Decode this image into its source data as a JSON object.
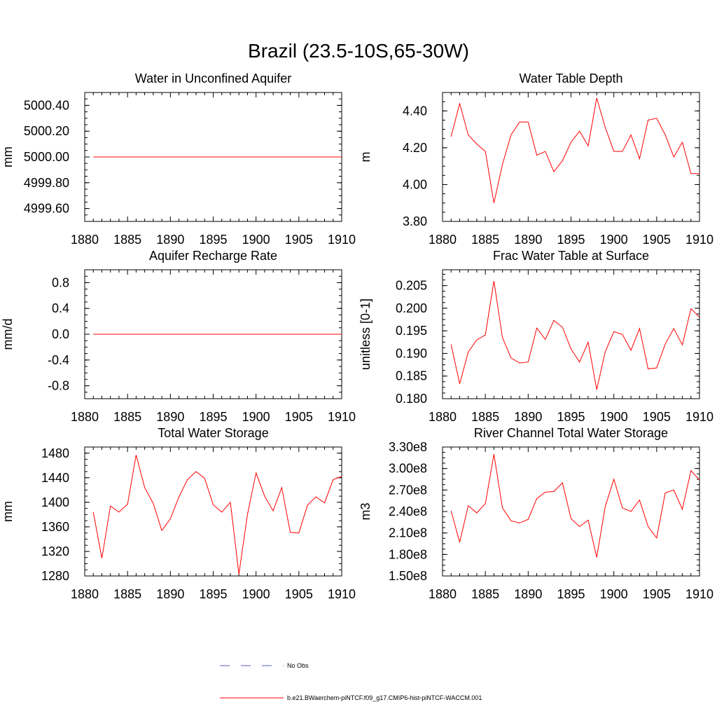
{
  "title": "Brazil (23.5-10S,65-30W)",
  "colors": {
    "model": "#ff0000",
    "obs": "#5b5bc8",
    "axis": "#000000"
  },
  "legend": {
    "obs_label": "No Obs",
    "model_label": "b.e21.BWaerchem-piNTCF.f09_g17.CMIP6-hist-piNTCF-WACCM.001"
  },
  "chart_data": [
    {
      "type": "line",
      "title": "Water in Unconfined Aquifer",
      "ylabel": "mm",
      "xlim": [
        1880,
        1910
      ],
      "ylim": [
        4999.5,
        5000.5
      ],
      "x_ticks": [
        1880,
        1885,
        1890,
        1895,
        1900,
        1905,
        1910
      ],
      "y_ticks": [
        "4999.60",
        "5000.40",
        "5000.20",
        "5000.00",
        "4999.80"
      ],
      "y_tick_values": [
        4999.6,
        5000.4,
        5000.2,
        5000.0,
        4999.8
      ],
      "series": [
        {
          "x": [
            1881,
            1910
          ],
          "y": [
            5000.0,
            5000.0
          ]
        }
      ]
    },
    {
      "type": "line",
      "title": "Water Table Depth",
      "ylabel": "m",
      "xlim": [
        1880,
        1910
      ],
      "ylim": [
        3.8,
        4.5
      ],
      "x_ticks": [
        1880,
        1885,
        1890,
        1895,
        1900,
        1905,
        1910
      ],
      "y_ticks": [
        "3.80",
        "4.00",
        "4.20",
        "4.40"
      ],
      "y_tick_values": [
        3.8,
        4.0,
        4.2,
        4.4
      ],
      "series": [
        {
          "x": [
            1881,
            1882,
            1883,
            1884,
            1885,
            1886,
            1887,
            1888,
            1889,
            1890,
            1891,
            1892,
            1893,
            1894,
            1895,
            1896,
            1897,
            1898,
            1899,
            1900,
            1901,
            1902,
            1903,
            1904,
            1905,
            1906,
            1907,
            1908,
            1909,
            1910
          ],
          "y": [
            4.26,
            4.44,
            4.27,
            4.22,
            4.18,
            3.9,
            4.11,
            4.27,
            4.34,
            4.34,
            4.16,
            4.18,
            4.07,
            4.13,
            4.23,
            4.29,
            4.21,
            4.47,
            4.31,
            4.18,
            4.18,
            4.27,
            4.14,
            4.35,
            4.36,
            4.27,
            4.15,
            4.23,
            4.06,
            4.06
          ]
        }
      ]
    },
    {
      "type": "line",
      "title": "Aquifer Recharge Rate",
      "ylabel": "mm/d",
      "xlim": [
        1880,
        1910
      ],
      "ylim": [
        -1.0,
        1.0
      ],
      "x_ticks": [
        1880,
        1885,
        1890,
        1895,
        1900,
        1905,
        1910
      ],
      "y_ticks": [
        "-0.8",
        "-0.4",
        "0.0",
        "0.4",
        "0.8"
      ],
      "y_tick_values": [
        -0.8,
        -0.4,
        0.0,
        0.4,
        0.8
      ],
      "series": [
        {
          "x": [
            1881,
            1910
          ],
          "y": [
            0.0,
            0.0
          ]
        }
      ]
    },
    {
      "type": "line",
      "title": "Frac Water Table at Surface",
      "ylabel": "unitless [0-1]",
      "xlim": [
        1880,
        1910
      ],
      "ylim": [
        0.18,
        0.2085
      ],
      "x_ticks": [
        1880,
        1885,
        1890,
        1895,
        1900,
        1905,
        1910
      ],
      "y_ticks": [
        "0.180",
        "0.185",
        "0.190",
        "0.195",
        "0.200",
        "0.205"
      ],
      "y_tick_values": [
        0.18,
        0.185,
        0.19,
        0.195,
        0.2,
        0.205
      ],
      "series": [
        {
          "x": [
            1881,
            1882,
            1883,
            1884,
            1885,
            1886,
            1887,
            1888,
            1889,
            1890,
            1891,
            1892,
            1893,
            1894,
            1895,
            1896,
            1897,
            1898,
            1899,
            1900,
            1901,
            1902,
            1903,
            1904,
            1905,
            1906,
            1907,
            1908,
            1909,
            1910
          ],
          "y": [
            0.192,
            0.1833,
            0.1903,
            0.193,
            0.1941,
            0.206,
            0.1935,
            0.189,
            0.1879,
            0.1881,
            0.1956,
            0.1931,
            0.1973,
            0.1958,
            0.191,
            0.1881,
            0.1925,
            0.182,
            0.1904,
            0.1948,
            0.1942,
            0.1907,
            0.1955,
            0.1866,
            0.1868,
            0.1921,
            0.1955,
            0.1919,
            0.1999,
            0.198
          ]
        }
      ]
    },
    {
      "type": "line",
      "title": "Total Water Storage",
      "ylabel": "mm",
      "xlim": [
        1880,
        1910
      ],
      "ylim": [
        1280,
        1490
      ],
      "x_ticks": [
        1880,
        1885,
        1890,
        1895,
        1900,
        1905,
        1910
      ],
      "y_ticks": [
        "1280",
        "1320",
        "1360",
        "1400",
        "1440",
        "1480"
      ],
      "y_tick_values": [
        1280,
        1320,
        1360,
        1400,
        1440,
        1480
      ],
      "series": [
        {
          "x": [
            1881,
            1882,
            1883,
            1884,
            1885,
            1886,
            1887,
            1888,
            1889,
            1890,
            1891,
            1892,
            1893,
            1894,
            1895,
            1896,
            1897,
            1898,
            1899,
            1900,
            1901,
            1902,
            1903,
            1904,
            1905,
            1906,
            1907,
            1908,
            1909,
            1910
          ],
          "y": [
            1384,
            1309,
            1394,
            1384,
            1397,
            1477,
            1424,
            1398,
            1354,
            1373,
            1409,
            1437,
            1450,
            1439,
            1396,
            1384,
            1400,
            1283,
            1380,
            1448,
            1410,
            1386,
            1424,
            1351,
            1350,
            1395,
            1409,
            1399,
            1437,
            1442
          ]
        }
      ]
    },
    {
      "type": "line",
      "title": "River Channel Total Water Storage",
      "ylabel": "m3",
      "xlim": [
        1880,
        1910
      ],
      "ylim": [
        150000000.0,
        330000000.0
      ],
      "x_ticks": [
        1880,
        1885,
        1890,
        1895,
        1900,
        1905,
        1910
      ],
      "y_ticks": [
        "1.50e8",
        "1.80e8",
        "2.10e8",
        "2.40e8",
        "2.70e8",
        "3.00e8",
        "3.30e8"
      ],
      "y_tick_values": [
        150000000.0,
        180000000.0,
        210000000.0,
        240000000.0,
        270000000.0,
        300000000.0,
        330000000.0
      ],
      "series": [
        {
          "x": [
            1881,
            1882,
            1883,
            1884,
            1885,
            1886,
            1887,
            1888,
            1889,
            1890,
            1891,
            1892,
            1893,
            1894,
            1895,
            1896,
            1897,
            1898,
            1899,
            1900,
            1901,
            1902,
            1903,
            1904,
            1905,
            1906,
            1907,
            1908,
            1909,
            1910
          ],
          "y": [
            241000000.0,
            197000000.0,
            248000000.0,
            238000000.0,
            251000000.0,
            320000000.0,
            245000000.0,
            227000000.0,
            224000000.0,
            229000000.0,
            258000000.0,
            267000000.0,
            268000000.0,
            280000000.0,
            230000000.0,
            219000000.0,
            228000000.0,
            176000000.0,
            247000000.0,
            285000000.0,
            245000000.0,
            240000000.0,
            256000000.0,
            219000000.0,
            203000000.0,
            266000000.0,
            270000000.0,
            243000000.0,
            297000000.0,
            284000000.0
          ]
        }
      ]
    }
  ]
}
